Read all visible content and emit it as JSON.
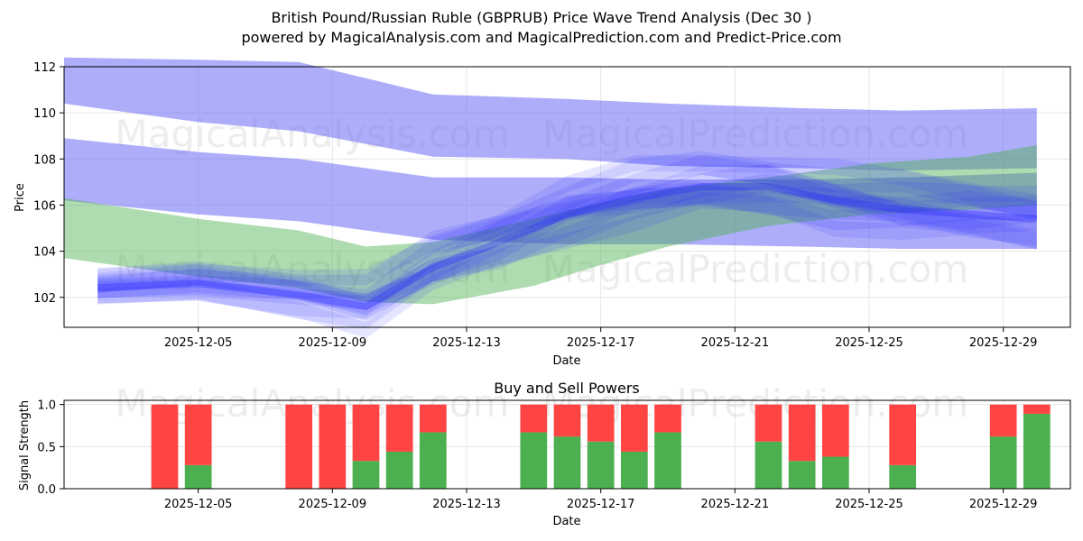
{
  "header": {
    "title": "British Pound/Russian Ruble (GBPRUB) Price Wave Trend Analysis (Dec 30 )",
    "subtitle": "powered by MagicalAnalysis.com and MagicalPrediction.com and Predict-Price.com"
  },
  "watermarks": {
    "left": "MagicalAnalysis.com",
    "right": "MagicalPrediction.com"
  },
  "colors": {
    "upper_band": "#6a6af5",
    "green_band": "#4caf50",
    "wave": "#2a2aff",
    "buy": "#4caf50",
    "sell": "#ff4444"
  },
  "chart_data": [
    {
      "type": "area",
      "name": "price-wave-chart",
      "title": "",
      "xlabel": "Date",
      "ylabel": "Price",
      "xlim": [
        "2025-12-01",
        "2025-12-31"
      ],
      "ylim": [
        100.7,
        112.0
      ],
      "xticks": [
        "2025-12-05",
        "2025-12-09",
        "2025-12-13",
        "2025-12-17",
        "2025-12-21",
        "2025-12-25",
        "2025-12-29"
      ],
      "yticks": [
        102,
        104,
        106,
        108,
        110,
        112
      ],
      "grid": true,
      "series": [
        {
          "name": "upper-band",
          "x": [
            "2025-12-01",
            "2025-12-05",
            "2025-12-08",
            "2025-12-12",
            "2025-12-16",
            "2025-12-19",
            "2025-12-23",
            "2025-12-26",
            "2025-12-30"
          ],
          "upper": [
            112.4,
            112.3,
            112.2,
            110.8,
            110.6,
            110.4,
            110.2,
            110.1,
            110.2
          ],
          "lower": [
            110.4,
            109.6,
            109.2,
            108.1,
            108.0,
            107.7,
            107.6,
            107.5,
            107.6
          ]
        },
        {
          "name": "middle-band",
          "x": [
            "2025-12-01",
            "2025-12-05",
            "2025-12-08",
            "2025-12-12",
            "2025-12-16",
            "2025-12-19",
            "2025-12-23",
            "2025-12-26",
            "2025-12-30"
          ],
          "upper": [
            108.9,
            108.3,
            108.0,
            107.2,
            107.2,
            107.1,
            107.1,
            107.2,
            107.4
          ],
          "lower": [
            106.2,
            105.6,
            105.3,
            104.5,
            104.3,
            104.3,
            104.2,
            104.1,
            104.1
          ]
        },
        {
          "name": "green-band",
          "x": [
            "2025-12-01",
            "2025-12-05",
            "2025-12-08",
            "2025-12-10",
            "2025-12-12",
            "2025-12-15",
            "2025-12-17",
            "2025-12-19",
            "2025-12-22",
            "2025-12-25",
            "2025-12-28",
            "2025-12-30"
          ],
          "upper": [
            106.3,
            105.4,
            104.9,
            104.2,
            104.4,
            105.4,
            106.1,
            106.7,
            107.2,
            107.8,
            108.1,
            108.6
          ],
          "lower": [
            103.7,
            102.9,
            102.4,
            101.8,
            101.7,
            102.5,
            103.4,
            104.2,
            105.1,
            105.6,
            105.8,
            106.0
          ]
        },
        {
          "name": "wave-mean",
          "x": [
            "2025-12-02",
            "2025-12-05",
            "2025-12-08",
            "2025-12-10",
            "2025-12-12",
            "2025-12-14",
            "2025-12-16",
            "2025-12-18",
            "2025-12-20",
            "2025-12-22",
            "2025-12-24",
            "2025-12-26",
            "2025-12-28",
            "2025-12-30"
          ],
          "values": [
            102.4,
            102.6,
            102.1,
            101.6,
            103.3,
            104.4,
            105.6,
            106.3,
            106.8,
            106.8,
            106.2,
            105.8,
            105.6,
            105.4
          ]
        }
      ]
    },
    {
      "type": "bar",
      "name": "buy-sell-powers",
      "title": "Buy and Sell Powers",
      "xlabel": "Date",
      "ylabel": "Signal Strength",
      "ylim": [
        0,
        1.05
      ],
      "yticks": [
        "0.0",
        "0.5",
        "1.0"
      ],
      "xticks": [
        "2025-12-05",
        "2025-12-09",
        "2025-12-13",
        "2025-12-17",
        "2025-12-21",
        "2025-12-25",
        "2025-12-29"
      ],
      "categories": [
        "2025-12-04",
        "2025-12-05",
        "2025-12-08",
        "2025-12-09",
        "2025-12-10",
        "2025-12-11",
        "2025-12-12",
        "2025-12-15",
        "2025-12-16",
        "2025-12-17",
        "2025-12-18",
        "2025-12-19",
        "2025-12-22",
        "2025-12-23",
        "2025-12-24",
        "2025-12-26",
        "2025-12-29",
        "2025-12-30"
      ],
      "series": [
        {
          "name": "Buy",
          "values": [
            0.0,
            0.28,
            0.0,
            0.0,
            0.33,
            0.44,
            0.67,
            0.67,
            0.62,
            0.56,
            0.44,
            0.67,
            0.56,
            0.33,
            0.38,
            0.28,
            0.62,
            0.89
          ]
        },
        {
          "name": "Sell",
          "values": [
            1.0,
            0.72,
            1.0,
            1.0,
            0.67,
            0.56,
            0.33,
            0.33,
            0.38,
            0.44,
            0.56,
            0.33,
            0.44,
            0.67,
            0.62,
            0.72,
            0.38,
            0.11
          ]
        }
      ]
    }
  ]
}
